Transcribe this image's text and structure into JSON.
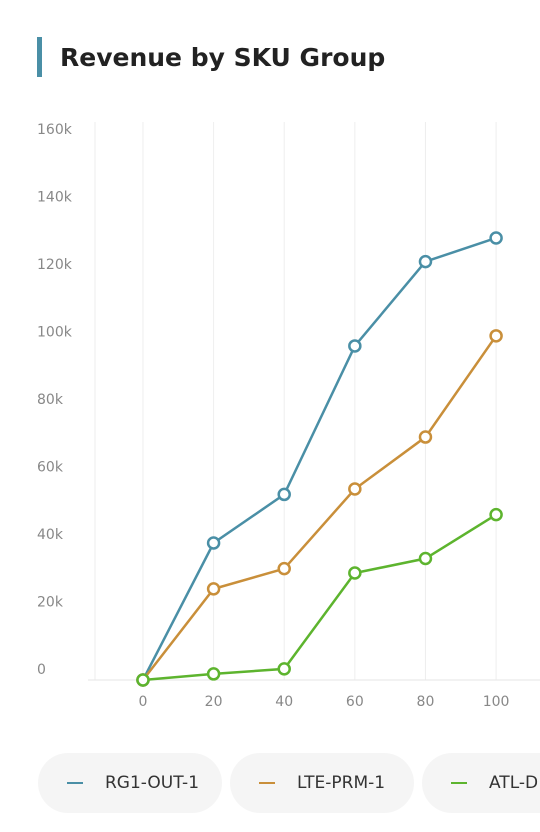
{
  "chart_data": {
    "type": "line",
    "title": "Revenue by SKU Group",
    "x": [
      0,
      20,
      40,
      60,
      80,
      100
    ],
    "series": [
      {
        "name": "RG1-OUT-1",
        "color": "#4a8fa6",
        "values": [
          -3000,
          37600,
          52000,
          96000,
          121000,
          128000
        ]
      },
      {
        "name": "LTE-PRM-1",
        "color": "#c98f3a",
        "values": [
          -3000,
          24000,
          30000,
          53600,
          69000,
          99000
        ]
      },
      {
        "name": "ATL-D",
        "color": "#5db42e",
        "values": [
          -3000,
          -1200,
          300,
          28700,
          33000,
          46000
        ]
      }
    ],
    "xlim": [
      -15,
      113
    ],
    "xticks": [
      0,
      20,
      40,
      60,
      80,
      100
    ],
    "ylim": [
      -3000,
      160000
    ],
    "yticks": [
      0,
      {
        "value": 20000,
        "label": "20k"
      },
      {
        "value": 40000,
        "label": "40k"
      },
      {
        "value": 60000,
        "label": "60k"
      },
      {
        "value": 80000,
        "label": "80k"
      },
      {
        "value": 100000,
        "label": "100k"
      },
      {
        "value": 120000,
        "label": "120k"
      },
      {
        "value": 140000,
        "label": "140k"
      },
      {
        "value": 160000,
        "label": "160k"
      }
    ],
    "grid": true
  }
}
